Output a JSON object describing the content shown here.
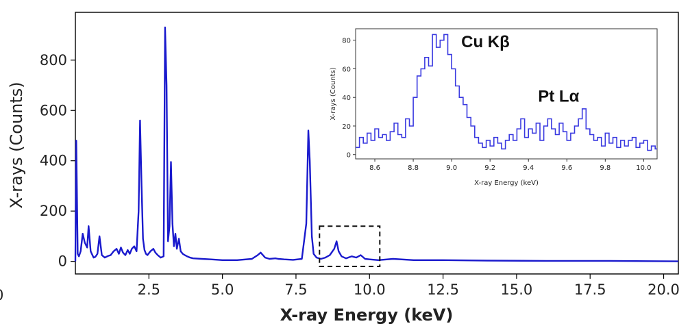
{
  "chart_data": [
    {
      "type": "line",
      "name": "main-spectrum",
      "title": "",
      "xlabel": "X-ray Energy (keV)",
      "ylabel": "X-rays (Counts)",
      "xlim": [
        0,
        20.5
      ],
      "ylim": [
        -50,
        990
      ],
      "xticks": [
        2.5,
        5.0,
        7.5,
        10.0,
        12.5,
        15.0,
        17.5,
        20.0
      ],
      "xtick_labels": [
        "2.5",
        "5.0",
        "7.5",
        "10.0",
        "12.5",
        "15.0",
        "17.5",
        "20.0"
      ],
      "yticks": [
        0,
        200,
        400,
        600,
        800
      ],
      "ytick_labels": [
        "0",
        "200",
        "400",
        "600",
        "800"
      ],
      "color": "#1a1acd",
      "series": [
        {
          "name": "spectrum",
          "x": [
            0.0,
            0.03,
            0.08,
            0.12,
            0.18,
            0.25,
            0.32,
            0.4,
            0.45,
            0.52,
            0.58,
            0.62,
            0.68,
            0.75,
            0.82,
            0.9,
            0.95,
            1.0,
            1.05,
            1.12,
            1.2,
            1.3,
            1.4,
            1.48,
            1.55,
            1.62,
            1.7,
            1.78,
            1.85,
            1.92,
            2.0,
            2.08,
            2.15,
            2.2,
            2.25,
            2.3,
            2.35,
            2.4,
            2.45,
            2.55,
            2.65,
            2.72,
            2.8,
            2.9,
            3.0,
            3.05,
            3.1,
            3.15,
            3.2,
            3.25,
            3.3,
            3.35,
            3.4,
            3.45,
            3.52,
            3.58,
            3.65,
            3.72,
            3.8,
            3.9,
            4.0,
            4.3,
            4.6,
            5.0,
            5.5,
            6.0,
            6.2,
            6.3,
            6.45,
            6.6,
            6.8,
            6.9,
            7.1,
            7.4,
            7.7,
            7.85,
            7.92,
            7.97,
            8.04,
            8.1,
            8.2,
            8.35,
            8.5,
            8.65,
            8.8,
            8.88,
            8.95,
            9.05,
            9.2,
            9.4,
            9.55,
            9.7,
            9.85,
            10.0,
            10.3,
            10.8,
            11.5,
            12.5,
            14.0,
            16.0,
            18.0,
            19.5,
            20.5
          ],
          "y": [
            0,
            480,
            30,
            20,
            40,
            110,
            75,
            55,
            140,
            40,
            25,
            15,
            18,
            30,
            100,
            25,
            20,
            15,
            18,
            22,
            25,
            40,
            50,
            30,
            55,
            35,
            25,
            45,
            30,
            50,
            60,
            40,
            200,
            560,
            300,
            90,
            45,
            30,
            25,
            40,
            50,
            35,
            25,
            15,
            20,
            930,
            700,
            80,
            140,
            395,
            150,
            60,
            110,
            50,
            90,
            40,
            30,
            25,
            20,
            15,
            12,
            10,
            8,
            5,
            5,
            10,
            25,
            35,
            15,
            10,
            12,
            10,
            8,
            6,
            10,
            150,
            520,
            400,
            100,
            30,
            15,
            10,
            15,
            25,
            50,
            80,
            40,
            20,
            12,
            20,
            15,
            25,
            10,
            8,
            5,
            10,
            5,
            5,
            3,
            2,
            2,
            1,
            0
          ]
        }
      ],
      "annotation_box": {
        "x_range": [
          8.3,
          10.35
        ],
        "y_range": [
          -20,
          140
        ],
        "style": "dashed"
      }
    },
    {
      "type": "line",
      "name": "inset-spectrum",
      "title": "",
      "xlabel": "X-ray Energy (keV)",
      "ylabel": "X-rays (Counts)",
      "xlim": [
        8.5,
        10.07
      ],
      "ylim": [
        -3,
        88
      ],
      "xticks": [
        8.6,
        8.8,
        9.0,
        9.2,
        9.4,
        9.6,
        9.8,
        10.0
      ],
      "xtick_labels": [
        "8.6",
        "8.8",
        "9.0",
        "9.2",
        "9.4",
        "9.6",
        "9.8",
        "10.0"
      ],
      "yticks": [
        0,
        20,
        40,
        60,
        80
      ],
      "ytick_labels": [
        "0",
        "20",
        "40",
        "60",
        "80"
      ],
      "color": "#3a3ae0",
      "series": [
        {
          "name": "zoom",
          "x": [
            8.5,
            8.52,
            8.54,
            8.56,
            8.58,
            8.6,
            8.62,
            8.64,
            8.66,
            8.68,
            8.7,
            8.72,
            8.74,
            8.76,
            8.78,
            8.8,
            8.82,
            8.84,
            8.86,
            8.88,
            8.9,
            8.92,
            8.94,
            8.96,
            8.98,
            9.0,
            9.02,
            9.04,
            9.06,
            9.08,
            9.1,
            9.12,
            9.14,
            9.16,
            9.18,
            9.2,
            9.22,
            9.24,
            9.26,
            9.28,
            9.3,
            9.32,
            9.34,
            9.36,
            9.38,
            9.4,
            9.42,
            9.44,
            9.46,
            9.48,
            9.5,
            9.52,
            9.54,
            9.56,
            9.58,
            9.6,
            9.62,
            9.64,
            9.66,
            9.68,
            9.7,
            9.72,
            9.74,
            9.76,
            9.78,
            9.8,
            9.82,
            9.84,
            9.86,
            9.88,
            9.9,
            9.92,
            9.94,
            9.96,
            9.98,
            10.0,
            10.02,
            10.04,
            10.06
          ],
          "y": [
            5,
            12,
            8,
            15,
            10,
            18,
            12,
            14,
            10,
            16,
            22,
            14,
            12,
            25,
            20,
            40,
            55,
            60,
            68,
            62,
            84,
            75,
            80,
            84,
            70,
            60,
            48,
            40,
            35,
            26,
            20,
            12,
            8,
            5,
            10,
            6,
            12,
            8,
            4,
            10,
            14,
            10,
            18,
            25,
            12,
            18,
            15,
            22,
            10,
            20,
            25,
            18,
            14,
            22,
            16,
            10,
            15,
            20,
            25,
            32,
            18,
            14,
            10,
            12,
            6,
            15,
            8,
            12,
            5,
            10,
            6,
            10,
            12,
            5,
            8,
            10,
            3,
            6,
            4
          ]
        }
      ],
      "annotations": [
        {
          "text": "Cu Kβ",
          "x": 9.05,
          "y": 75
        },
        {
          "text": "Pt Lα",
          "x": 9.45,
          "y": 37
        }
      ]
    }
  ],
  "extra_labels": {
    "left_edge_fragment": "0"
  }
}
